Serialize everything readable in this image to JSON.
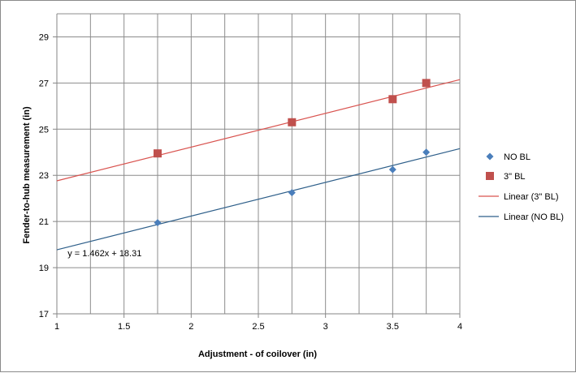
{
  "chart_data": {
    "type": "scatter",
    "title": "",
    "xlabel": "Adjustment - of coilover (in)",
    "ylabel": "Fender-to-hub measurement (in)",
    "xlim": [
      1,
      4
    ],
    "ylim": [
      17,
      30
    ],
    "x_ticks": [
      1,
      1.5,
      2,
      2.5,
      3,
      3.5,
      4
    ],
    "x_tick_labels": [
      "1",
      "1.5",
      "2",
      "2.5",
      "3",
      "3.5",
      "4"
    ],
    "x_minor_grid_step": 0.25,
    "y_ticks": [
      17,
      19,
      21,
      23,
      25,
      27,
      29
    ],
    "y_tick_labels": [
      "17",
      "19",
      "21",
      "23",
      "25",
      "27",
      "29"
    ],
    "grid": true,
    "legend_position": "right",
    "series": [
      {
        "name": "NO BL",
        "marker": "diamond",
        "color": "#4a7ebb",
        "x": [
          1.75,
          2.75,
          3.5,
          3.75
        ],
        "y": [
          20.95,
          22.25,
          23.25,
          24.0
        ]
      },
      {
        "name": "3\" BL",
        "marker": "square",
        "color": "#c0504d",
        "x": [
          1.75,
          2.75,
          3.5,
          3.75
        ],
        "y": [
          23.95,
          25.3,
          26.3,
          27.0
        ]
      }
    ],
    "trendlines": [
      {
        "name": "Linear (3\" BL)",
        "color": "#d9534f",
        "slope": 1.462,
        "intercept": 21.3
      },
      {
        "name": "Linear (NO BL)",
        "color": "#2e5f8a",
        "slope": 1.462,
        "intercept": 18.31
      }
    ],
    "annotations": [
      {
        "text": "y = 1.462x + 18.31",
        "x": 1.08,
        "y": 19.5
      }
    ]
  }
}
